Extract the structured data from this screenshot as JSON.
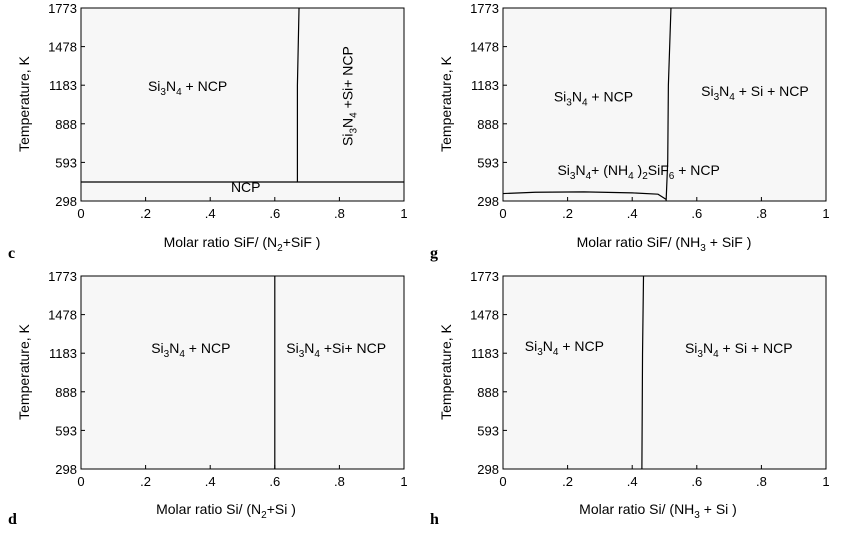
{
  "chart_data": [
    {
      "type": "phase-diagram",
      "panel": "c",
      "xlabel": "Molar ratio SiF/ (N2+SiF )",
      "ylabel": "Temperature, K",
      "xlim": [
        0,
        1
      ],
      "ylim": [
        298,
        1773
      ],
      "xticks": [
        "0",
        ".2",
        ".4",
        ".6",
        ".8",
        "1"
      ],
      "yticks": [
        "1773",
        "1478",
        "1183",
        "888",
        "593",
        "298"
      ],
      "boundaries": [
        {
          "name": "vertical",
          "points": [
            [
              0.67,
              443
            ],
            [
              0.67,
              1183
            ],
            [
              0.675,
              1773
            ]
          ]
        },
        {
          "name": "horizontal",
          "points": [
            [
              0,
              443
            ],
            [
              1,
              443
            ]
          ]
        }
      ],
      "regions": [
        {
          "label": "Si3N4 + NCP",
          "x": 0.33,
          "y": 1140
        },
        {
          "label": "Si3N4 +Si+ NCP",
          "x": 0.84,
          "y": 1100,
          "rotate": true
        },
        {
          "label": "NCP",
          "x": 0.51,
          "y": 368
        }
      ]
    },
    {
      "type": "phase-diagram",
      "panel": "g",
      "xlabel": "Molar ratio SiF/ (NH3 + SiF )",
      "ylabel": "Temperature, K",
      "xlim": [
        0,
        1
      ],
      "ylim": [
        298,
        1773
      ],
      "xticks": [
        "0",
        ".2",
        ".4",
        ".6",
        ".8",
        "1"
      ],
      "yticks": [
        "1773",
        "1478",
        "1183",
        "888",
        "593",
        "298"
      ],
      "boundaries": [
        {
          "name": "vertical",
          "points": [
            [
              0.505,
              298
            ],
            [
              0.51,
              600
            ],
            [
              0.512,
              1183
            ],
            [
              0.52,
              1773
            ]
          ]
        },
        {
          "name": "lower-dome",
          "points": [
            [
              0,
              355
            ],
            [
              0.1,
              365
            ],
            [
              0.25,
              368
            ],
            [
              0.4,
              360
            ],
            [
              0.48,
              350
            ],
            [
              0.505,
              310
            ]
          ]
        }
      ],
      "regions": [
        {
          "label": "Si3N4 + NCP",
          "x": 0.28,
          "y": 1060
        },
        {
          "label": "Si3N4 + Si + NCP",
          "x": 0.78,
          "y": 1100
        },
        {
          "label": "Si3N4+ (NH4 )2SiF6 + NCP",
          "x": 0.42,
          "y": 495
        }
      ]
    },
    {
      "type": "phase-diagram",
      "panel": "d",
      "xlabel": "Molar ratio Si/ (N2+Si )",
      "ylabel": "Temperature, K",
      "xlim": [
        0,
        1
      ],
      "ylim": [
        298,
        1773
      ],
      "xticks": [
        "0",
        ".2",
        ".4",
        ".6",
        ".8",
        "1"
      ],
      "yticks": [
        "1773",
        "1478",
        "1183",
        "888",
        "593",
        "298"
      ],
      "boundaries": [
        {
          "name": "vertical",
          "points": [
            [
              0.6,
              298
            ],
            [
              0.6,
              1773
            ]
          ]
        }
      ],
      "regions": [
        {
          "label": "Si3N4 + NCP",
          "x": 0.34,
          "y": 1183
        },
        {
          "label": "Si3N4 +Si+ NCP",
          "x": 0.79,
          "y": 1183
        }
      ]
    },
    {
      "type": "phase-diagram",
      "panel": "h",
      "xlabel": "Molar ratio Si/ (NH3 + Si )",
      "ylabel": "Temperature, K",
      "xlim": [
        0,
        1
      ],
      "ylim": [
        298,
        1773
      ],
      "xticks": [
        "0",
        ".2",
        ".4",
        ".6",
        ".8",
        "1"
      ],
      "yticks": [
        "1773",
        "1478",
        "1183",
        "888",
        "593",
        "298"
      ],
      "boundaries": [
        {
          "name": "vertical",
          "points": [
            [
              0.43,
              298
            ],
            [
              0.432,
              1183
            ],
            [
              0.435,
              1773
            ]
          ]
        }
      ],
      "regions": [
        {
          "label": "Si3N4 + NCP",
          "x": 0.19,
          "y": 1200
        },
        {
          "label": "Si3N4 + Si + NCP",
          "x": 0.73,
          "y": 1183
        }
      ]
    }
  ]
}
